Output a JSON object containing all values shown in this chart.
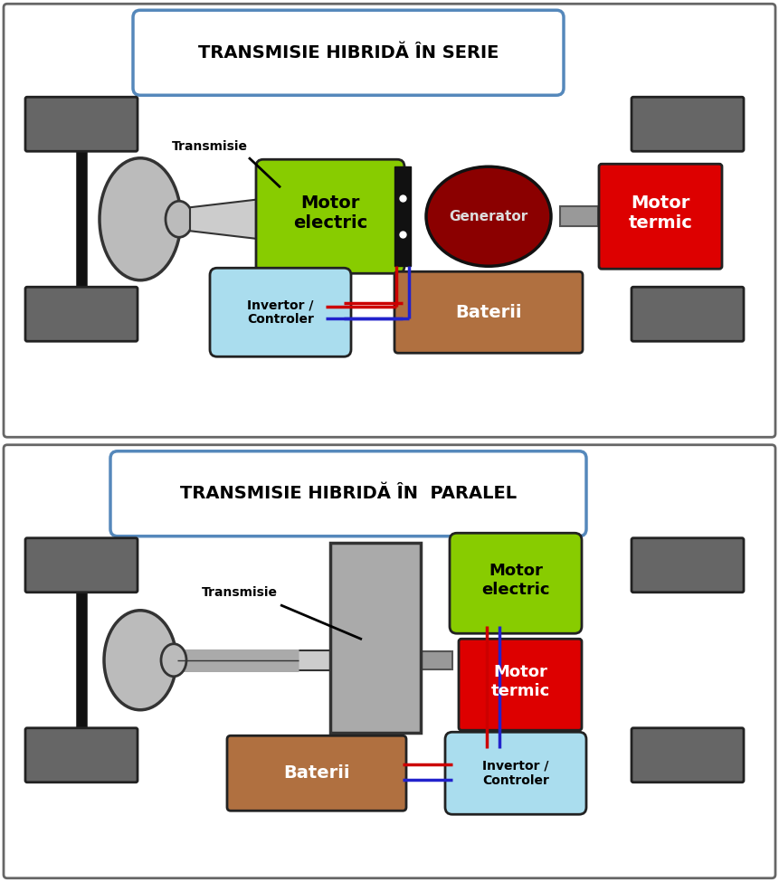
{
  "fig_width": 8.61,
  "fig_height": 9.75,
  "bg_color": "#ffffff",
  "title1": "TRANSMISIE HIBRIDĂ ÎN SERIE",
  "title2": "TRANSMISIE HIBRIDĂ ÎN  PARALEL",
  "title_box_edge": "#5588bb",
  "wheel_color": "#666666",
  "motor_electric_color": "#88cc00",
  "motor_electric_text": "Motor\nelectric",
  "generator_color": "#8b0000",
  "generator_text": "Generator",
  "motor_termic_color": "#dd0000",
  "motor_termic_text": "Motor\ntermic",
  "invertor_color": "#aaddee",
  "invertor_text": "Invertor /\nControler",
  "baterii_color": "#b07040",
  "baterii_text": "Baterii",
  "transmisie_label": "Transmisie",
  "diff_color": "#bbbbbb",
  "gearbox_color": "#aaaaaa",
  "wire_red": "#cc0000",
  "wire_blue": "#2222cc"
}
